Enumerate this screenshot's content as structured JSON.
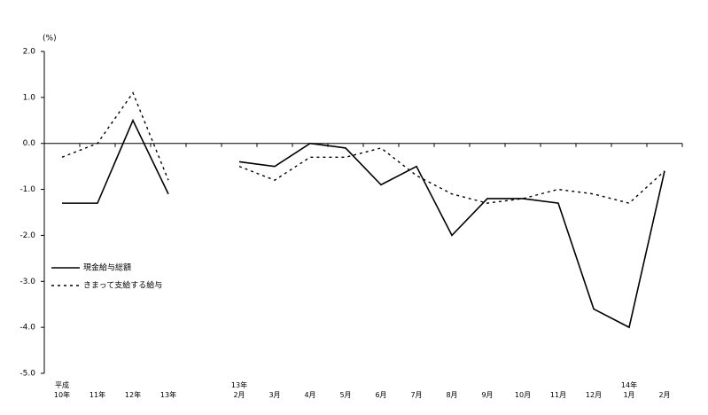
{
  "chart_data": {
    "type": "line",
    "y_unit": "(%)",
    "categories": [
      "平成\n10年",
      "11年",
      "12年",
      "13年",
      null,
      "13年\n2月",
      "3月",
      "4月",
      "5月",
      "6月",
      "7月",
      "8月",
      "9月",
      "10月",
      "11月",
      "12月",
      "14年\n1月",
      "2月"
    ],
    "series": [
      {
        "name": "現金給与総額",
        "color": "#000000",
        "dash": "solid",
        "values": [
          -1.3,
          -1.3,
          0.5,
          -1.1,
          null,
          -0.4,
          -0.5,
          0.0,
          -0.1,
          -0.9,
          -0.5,
          -2.0,
          -1.2,
          -1.2,
          -1.3,
          -3.6,
          -4.0,
          -0.6
        ]
      },
      {
        "name": "きまって支給する給与",
        "color": "#000000",
        "dash": "dashed",
        "values": [
          -0.3,
          0.0,
          1.1,
          -0.8,
          null,
          -0.5,
          -0.8,
          -0.3,
          -0.3,
          -0.1,
          -0.7,
          -1.1,
          -1.3,
          -1.2,
          -1.0,
          -1.1,
          -1.3,
          -0.6
        ]
      }
    ],
    "ylim": [
      -5,
      2
    ],
    "yticks": [
      {
        "value": 2,
        "label": "2.0"
      },
      {
        "value": 1,
        "label": "1.0"
      },
      {
        "value": 0,
        "label": "0.0"
      },
      {
        "value": -1,
        "label": "-1.0"
      },
      {
        "value": -2,
        "label": "-2.0"
      },
      {
        "value": -3,
        "label": "-3.0"
      },
      {
        "value": -4,
        "label": "-4.0"
      },
      {
        "value": -5,
        "label": "-5.0"
      }
    ],
    "legend": "left"
  }
}
